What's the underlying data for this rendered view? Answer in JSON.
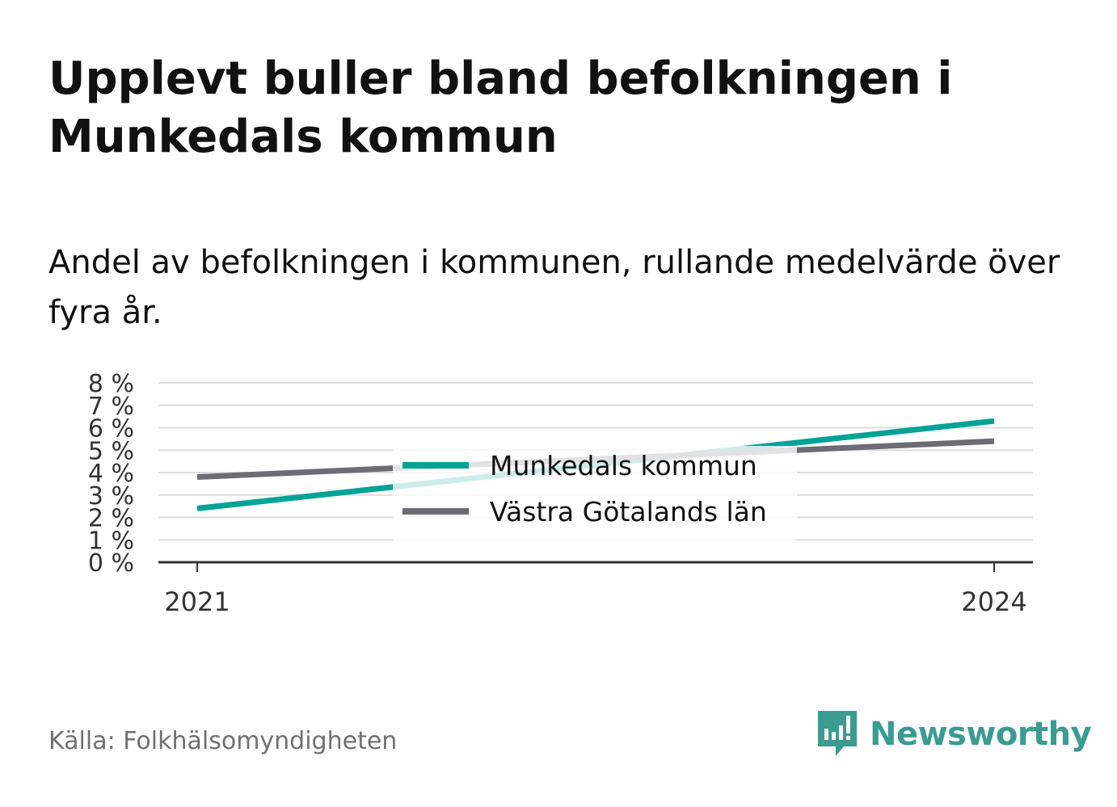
{
  "title": "Upplevt buller bland befolkningen i Munkedals kommun",
  "subtitle": "Andel av befolkningen i kommunen, rullande medelvärde över fyra år.",
  "source": "Källa: Folkhälsomyndigheten",
  "brand": {
    "name": "Newsworthy",
    "icon": "newsworthy-logo-icon",
    "color": "#3a9b90"
  },
  "colors": {
    "gridline": "#dddddd",
    "axis": "#333333",
    "tick_text": "#333333"
  },
  "chart_data": {
    "type": "line",
    "x": [
      "2021",
      "2024"
    ],
    "x_ticks": [
      "2021",
      "2024"
    ],
    "ylim": [
      0,
      8
    ],
    "y_ticks": [
      "0 %",
      "1 %",
      "2 %",
      "3 %",
      "4 %",
      "5 %",
      "6 %",
      "7 %",
      "8 %"
    ],
    "grid": true,
    "legend_position": "center",
    "series": [
      {
        "name": "Munkedals kommun",
        "values": [
          2.4,
          6.3
        ],
        "color": "#00a396"
      },
      {
        "name": "Västra Götalands län",
        "values": [
          3.8,
          5.4
        ],
        "color": "#6d6b73"
      }
    ]
  }
}
